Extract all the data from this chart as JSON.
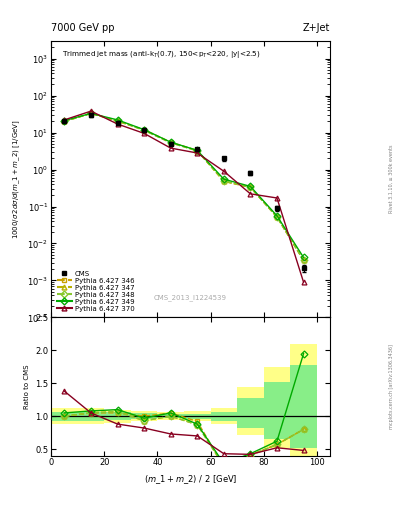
{
  "cms_x": [
    5,
    15,
    25,
    35,
    45,
    55,
    65,
    75,
    85,
    95
  ],
  "cms_y": [
    20,
    30,
    18,
    12,
    5.0,
    3.5,
    2.0,
    0.8,
    0.09,
    0.0022
  ],
  "cms_yerr": [
    2,
    3,
    2,
    1.5,
    0.5,
    0.4,
    0.25,
    0.1,
    0.015,
    0.0005
  ],
  "p346_x": [
    5,
    15,
    25,
    35,
    45,
    55,
    65,
    75,
    85,
    95
  ],
  "p346_y": [
    20,
    33,
    20,
    12,
    5.5,
    3.3,
    0.48,
    0.33,
    0.052,
    0.0035
  ],
  "p347_x": [
    5,
    15,
    25,
    35,
    45,
    55,
    65,
    75,
    85,
    95
  ],
  "p347_y": [
    20,
    33,
    21,
    11.5,
    5.3,
    3.2,
    0.48,
    0.33,
    0.052,
    0.0035
  ],
  "p348_x": [
    5,
    15,
    25,
    35,
    45,
    55,
    65,
    75,
    85,
    95
  ],
  "p348_y": [
    20,
    33,
    21,
    11.5,
    5.3,
    3.2,
    0.5,
    0.33,
    0.052,
    0.0035
  ],
  "p349_x": [
    5,
    15,
    25,
    35,
    45,
    55,
    65,
    75,
    85,
    95
  ],
  "p349_y": [
    21,
    33,
    22,
    12,
    5.5,
    3.3,
    0.55,
    0.35,
    0.056,
    0.0042
  ],
  "p370_x": [
    5,
    15,
    25,
    35,
    45,
    55,
    65,
    75,
    85,
    95
  ],
  "p370_y": [
    22,
    38,
    17,
    9.5,
    3.8,
    2.8,
    0.9,
    0.22,
    0.17,
    0.0009
  ],
  "ratio_346_x": [
    5,
    15,
    25,
    35,
    45,
    55,
    65,
    75,
    85,
    95
  ],
  "ratio_346_y": [
    1.0,
    1.05,
    1.05,
    1.0,
    1.05,
    0.92,
    0.24,
    0.41,
    0.57,
    0.8
  ],
  "ratio_347_x": [
    5,
    15,
    25,
    35,
    45,
    55,
    65,
    75,
    85,
    95
  ],
  "ratio_347_y": [
    1.0,
    1.05,
    1.07,
    0.93,
    1.0,
    0.87,
    0.24,
    0.41,
    0.57,
    0.8
  ],
  "ratio_348_x": [
    5,
    15,
    25,
    35,
    45,
    55,
    65,
    75,
    85,
    95
  ],
  "ratio_348_y": [
    1.0,
    1.05,
    1.07,
    0.93,
    1.0,
    0.87,
    0.25,
    0.4,
    0.57,
    0.8
  ],
  "ratio_349_x": [
    5,
    15,
    25,
    35,
    45,
    55,
    65,
    75,
    85,
    95
  ],
  "ratio_349_y": [
    1.05,
    1.08,
    1.1,
    0.97,
    1.05,
    0.88,
    0.28,
    0.43,
    0.62,
    1.95
  ],
  "ratio_370_x": [
    5,
    15,
    25,
    35,
    45,
    55,
    65,
    75,
    85,
    95
  ],
  "ratio_370_y": [
    1.38,
    1.05,
    0.88,
    0.82,
    0.73,
    0.7,
    0.43,
    0.42,
    0.52,
    0.48
  ],
  "band_x": [
    0,
    10,
    20,
    30,
    40,
    50,
    60,
    70,
    80,
    90,
    100
  ],
  "band_yellow_bot": [
    0.88,
    0.88,
    0.9,
    0.92,
    0.94,
    0.92,
    0.88,
    0.72,
    0.52,
    0.38,
    0.32
  ],
  "band_yellow_top": [
    1.12,
    1.12,
    1.1,
    1.08,
    1.06,
    1.08,
    1.12,
    1.45,
    1.75,
    2.1,
    2.2
  ],
  "band_green_bot": [
    0.93,
    0.93,
    0.94,
    0.95,
    0.97,
    0.96,
    0.93,
    0.82,
    0.65,
    0.52,
    0.47
  ],
  "band_green_top": [
    1.07,
    1.07,
    1.06,
    1.05,
    1.03,
    1.04,
    1.07,
    1.28,
    1.52,
    1.78,
    1.88
  ],
  "color_346": "#c8a000",
  "color_347": "#b8b000",
  "color_348": "#88c830",
  "color_349": "#00aa00",
  "color_370": "#880020",
  "color_band_yellow": "#ffff88",
  "color_band_green": "#88ee88",
  "xlim": [
    0,
    105
  ],
  "ylim_main": [
    0.0001,
    3000
  ],
  "ylim_ratio": [
    0.4,
    2.5
  ],
  "ratio_yticks": [
    0.5,
    1.0,
    1.5,
    2.0,
    2.5
  ],
  "main_xticks": [
    0,
    20,
    40,
    60,
    80,
    100
  ],
  "ratio_xticks": [
    0,
    20,
    40,
    60,
    80,
    100
  ]
}
